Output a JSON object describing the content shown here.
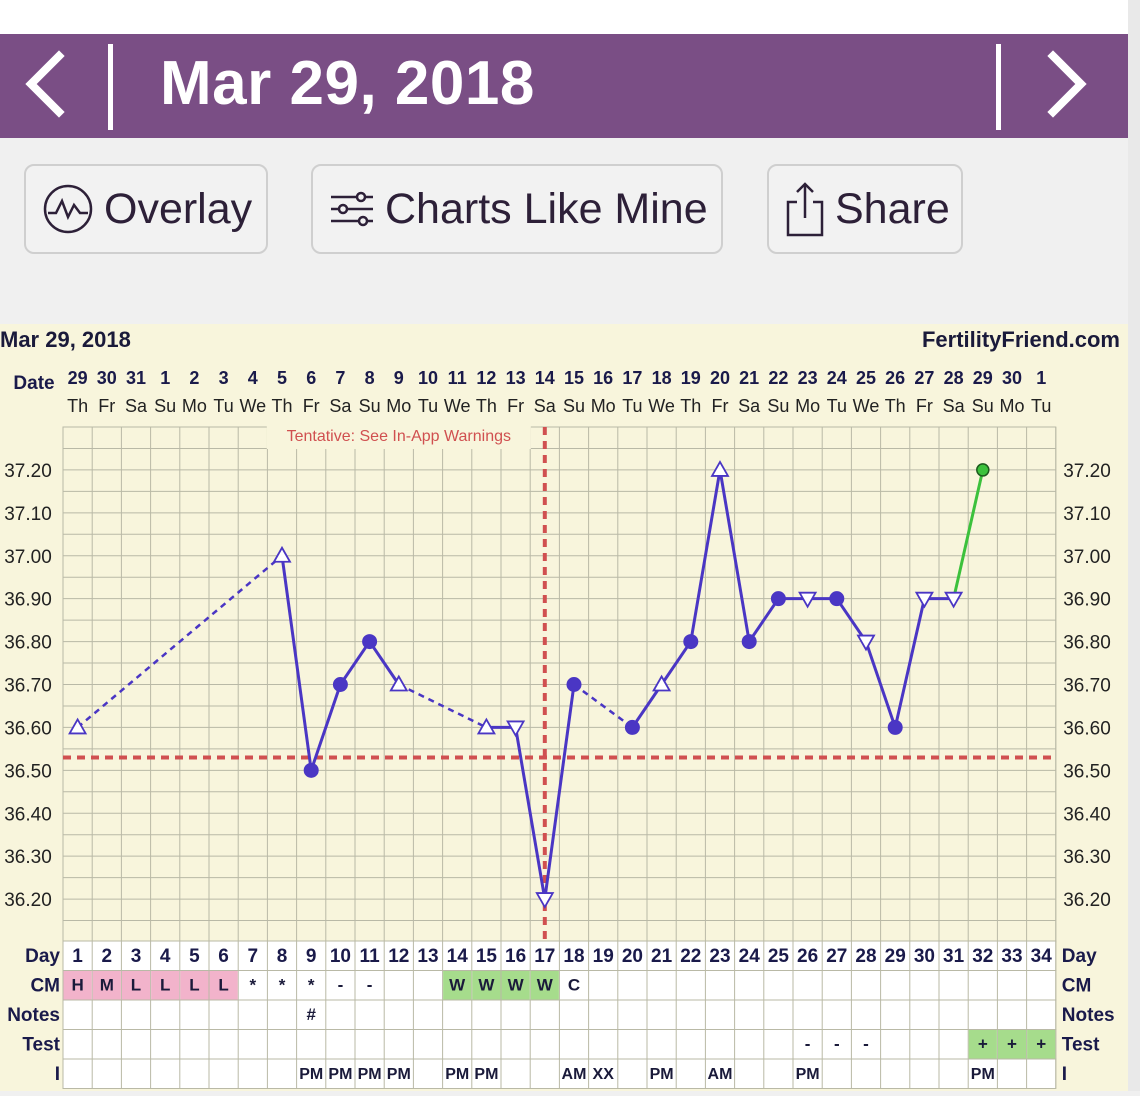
{
  "header": {
    "title": "Mar 29, 2018",
    "prev_icon": "chevron-left-icon",
    "next_icon": "chevron-right-icon",
    "bg_color": "#7a4e85"
  },
  "toolbar": {
    "overlay_label": "Overlay",
    "charts_like_mine_label": "Charts Like Mine",
    "share_label": "Share"
  },
  "chart_data": {
    "type": "line",
    "title": "Mar 29, 2018",
    "source": "FertilityFriend.com",
    "warning": "Tentative: See In-App Warnings",
    "date_label": "Date",
    "dates": [
      "29",
      "30",
      "31",
      "1",
      "2",
      "3",
      "4",
      "5",
      "6",
      "7",
      "8",
      "9",
      "10",
      "11",
      "12",
      "13",
      "14",
      "15",
      "16",
      "17",
      "18",
      "19",
      "20",
      "21",
      "22",
      "23",
      "24",
      "25",
      "26",
      "27",
      "28",
      "29",
      "30",
      "1"
    ],
    "weekdays": [
      "Th",
      "Fr",
      "Sa",
      "Su",
      "Mo",
      "Tu",
      "We",
      "Th",
      "Fr",
      "Sa",
      "Su",
      "Mo",
      "Tu",
      "We",
      "Th",
      "Fr",
      "Sa",
      "Su",
      "Mo",
      "Tu",
      "We",
      "Th",
      "Fr",
      "Sa",
      "Su",
      "Mo",
      "Tu",
      "We",
      "Th",
      "Fr",
      "Sa",
      "Su",
      "Mo",
      "Tu"
    ],
    "ylim": [
      36.1,
      37.3
    ],
    "yticks": [
      "37.20",
      "37.10",
      "37.00",
      "36.90",
      "36.80",
      "36.70",
      "36.60",
      "36.50",
      "36.40",
      "36.30",
      "36.20"
    ],
    "coverline": 36.53,
    "ovulation_day": 17,
    "temps": [
      {
        "day": 1,
        "value": 36.6,
        "marker": "open-up"
      },
      {
        "day": 8,
        "value": 37.0,
        "marker": "open-up"
      },
      {
        "day": 9,
        "value": 36.5,
        "marker": "filled"
      },
      {
        "day": 10,
        "value": 36.7,
        "marker": "filled"
      },
      {
        "day": 11,
        "value": 36.8,
        "marker": "filled"
      },
      {
        "day": 12,
        "value": 36.7,
        "marker": "open-up"
      },
      {
        "day": 15,
        "value": 36.6,
        "marker": "open-up"
      },
      {
        "day": 16,
        "value": 36.6,
        "marker": "open-down"
      },
      {
        "day": 17,
        "value": 36.2,
        "marker": "open-down"
      },
      {
        "day": 18,
        "value": 36.7,
        "marker": "filled"
      },
      {
        "day": 20,
        "value": 36.6,
        "marker": "filled"
      },
      {
        "day": 21,
        "value": 36.7,
        "marker": "open-up"
      },
      {
        "day": 22,
        "value": 36.8,
        "marker": "filled"
      },
      {
        "day": 23,
        "value": 37.2,
        "marker": "open-up"
      },
      {
        "day": 24,
        "value": 36.8,
        "marker": "filled"
      },
      {
        "day": 25,
        "value": 36.9,
        "marker": "filled"
      },
      {
        "day": 26,
        "value": 36.9,
        "marker": "open-down"
      },
      {
        "day": 27,
        "value": 36.9,
        "marker": "filled"
      },
      {
        "day": 28,
        "value": 36.8,
        "marker": "open-down"
      },
      {
        "day": 29,
        "value": 36.6,
        "marker": "filled"
      },
      {
        "day": 30,
        "value": 36.9,
        "marker": "open-down"
      },
      {
        "day": 31,
        "value": 36.9,
        "marker": "open-down"
      },
      {
        "day": 32,
        "value": 37.2,
        "marker": "green"
      }
    ],
    "segments": [
      {
        "from": 1,
        "to": 8,
        "style": "dashed"
      },
      {
        "from": 8,
        "to": 9,
        "style": "solid"
      },
      {
        "from": 9,
        "to": 10,
        "style": "solid"
      },
      {
        "from": 10,
        "to": 11,
        "style": "solid"
      },
      {
        "from": 11,
        "to": 12,
        "style": "solid"
      },
      {
        "from": 12,
        "to": 15,
        "style": "dashed"
      },
      {
        "from": 15,
        "to": 16,
        "style": "solid"
      },
      {
        "from": 16,
        "to": 17,
        "style": "solid"
      },
      {
        "from": 17,
        "to": 18,
        "style": "solid"
      },
      {
        "from": 18,
        "to": 20,
        "style": "dashed"
      },
      {
        "from": 20,
        "to": 21,
        "style": "solid"
      },
      {
        "from": 21,
        "to": 22,
        "style": "solid"
      },
      {
        "from": 22,
        "to": 23,
        "style": "solid"
      },
      {
        "from": 23,
        "to": 24,
        "style": "solid"
      },
      {
        "from": 24,
        "to": 25,
        "style": "solid"
      },
      {
        "from": 25,
        "to": 26,
        "style": "solid"
      },
      {
        "from": 26,
        "to": 27,
        "style": "solid"
      },
      {
        "from": 27,
        "to": 28,
        "style": "solid"
      },
      {
        "from": 28,
        "to": 29,
        "style": "solid"
      },
      {
        "from": 29,
        "to": 30,
        "style": "solid"
      },
      {
        "from": 30,
        "to": 31,
        "style": "solid"
      },
      {
        "from": 31,
        "to": 32,
        "style": "green"
      }
    ],
    "rows": [
      {
        "label": "Day",
        "type": "day"
      },
      {
        "label": "CM",
        "cells": {
          "1": "H",
          "2": "M",
          "3": "L",
          "4": "L",
          "5": "L",
          "6": "L",
          "7": "*",
          "8": "*",
          "9": "*",
          "10": "-",
          "11": "-",
          "14": "W",
          "15": "W",
          "16": "W",
          "17": "W",
          "18": "C"
        }
      },
      {
        "label": "Notes",
        "cells": {
          "9": "#"
        }
      },
      {
        "label": "Test",
        "cells": {
          "26": "-",
          "27": "-",
          "28": "-",
          "32": "+",
          "33": "+",
          "34": "+"
        }
      },
      {
        "label": "I",
        "cells": {
          "9": "PM",
          "10": "PM",
          "11": "PM",
          "12": "PM",
          "14": "PM",
          "15": "PM",
          "18": "AM",
          "19": "XX",
          "21": "PM",
          "23": "AM",
          "26": "PM",
          "32": "PM"
        }
      }
    ],
    "colors": {
      "line": "#4a36c4",
      "coverline": "#d05050",
      "green": "#3cc13c",
      "cm_pink": "#f2b3cb",
      "cm_green": "#a6dc8c",
      "test_green": "#a6dc8c",
      "grid": "#b9b9a6",
      "background": "#f8f5dc",
      "text": "#1a1a4a"
    }
  }
}
